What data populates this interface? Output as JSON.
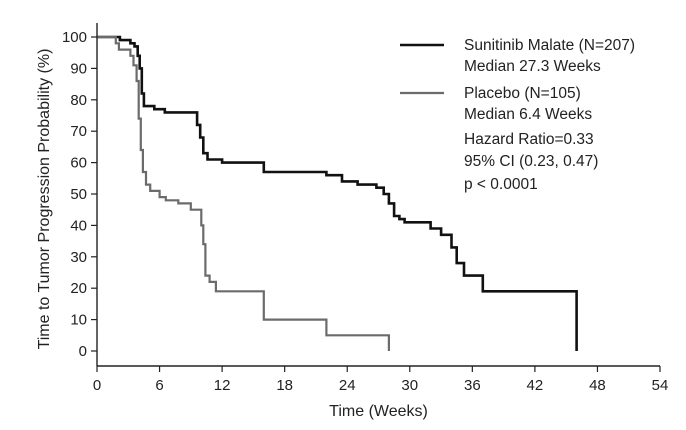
{
  "chart_data": {
    "type": "line",
    "title": "",
    "xlabel": "Time (Weeks)",
    "ylabel": "Time to Tumor Progression Probability (%)",
    "xlim": [
      0,
      54
    ],
    "ylim": [
      0,
      100
    ],
    "x_ticks": [
      0,
      6,
      12,
      18,
      24,
      30,
      36,
      42,
      48,
      54
    ],
    "y_ticks": [
      0,
      10,
      20,
      30,
      40,
      50,
      60,
      70,
      80,
      90,
      100
    ],
    "grid": false,
    "legend_position": "top-right",
    "series": [
      {
        "name": "Sunitinib Malate (N=207)",
        "median_label": "Median 27.3 Weeks",
        "color": "#111111",
        "step": true,
        "points": [
          [
            0,
            100
          ],
          [
            2.2,
            100
          ],
          [
            2.2,
            99
          ],
          [
            3.2,
            99
          ],
          [
            3.2,
            98
          ],
          [
            3.6,
            98
          ],
          [
            3.6,
            97
          ],
          [
            3.9,
            97
          ],
          [
            3.9,
            94
          ],
          [
            4.1,
            94
          ],
          [
            4.1,
            90
          ],
          [
            4.3,
            90
          ],
          [
            4.3,
            82
          ],
          [
            4.5,
            82
          ],
          [
            4.5,
            78
          ],
          [
            5.5,
            78
          ],
          [
            5.5,
            77
          ],
          [
            6.5,
            77
          ],
          [
            6.5,
            76
          ],
          [
            9.6,
            76
          ],
          [
            9.6,
            72
          ],
          [
            9.9,
            72
          ],
          [
            9.9,
            68
          ],
          [
            10.2,
            68
          ],
          [
            10.2,
            63
          ],
          [
            10.6,
            63
          ],
          [
            10.6,
            61
          ],
          [
            12,
            61
          ],
          [
            12,
            60
          ],
          [
            16,
            60
          ],
          [
            16,
            57
          ],
          [
            22,
            57
          ],
          [
            22,
            56
          ],
          [
            23.5,
            56
          ],
          [
            23.5,
            54
          ],
          [
            25,
            54
          ],
          [
            25,
            53
          ],
          [
            26.8,
            53
          ],
          [
            26.8,
            52
          ],
          [
            27.5,
            52
          ],
          [
            27.5,
            50
          ],
          [
            28,
            50
          ],
          [
            28,
            47
          ],
          [
            28.5,
            47
          ],
          [
            28.5,
            43
          ],
          [
            29,
            43
          ],
          [
            29,
            42
          ],
          [
            29.5,
            42
          ],
          [
            29.5,
            41
          ],
          [
            32,
            41
          ],
          [
            32,
            39
          ],
          [
            33,
            39
          ],
          [
            33,
            37
          ],
          [
            34,
            37
          ],
          [
            34,
            33
          ],
          [
            34.5,
            33
          ],
          [
            34.5,
            28
          ],
          [
            35.2,
            28
          ],
          [
            35.2,
            24
          ],
          [
            37,
            24
          ],
          [
            37,
            19
          ],
          [
            46,
            19
          ],
          [
            46,
            0
          ]
        ]
      },
      {
        "name": "Placebo (N=105)",
        "median_label": "Median 6.4 Weeks",
        "color": "#6b6b6b",
        "step": true,
        "points": [
          [
            0,
            100
          ],
          [
            1.8,
            100
          ],
          [
            1.8,
            98
          ],
          [
            2.1,
            98
          ],
          [
            2.1,
            96
          ],
          [
            3.2,
            96
          ],
          [
            3.2,
            94
          ],
          [
            3.5,
            94
          ],
          [
            3.5,
            91
          ],
          [
            3.8,
            91
          ],
          [
            3.8,
            86
          ],
          [
            4.0,
            86
          ],
          [
            4.0,
            74
          ],
          [
            4.2,
            74
          ],
          [
            4.2,
            64
          ],
          [
            4.4,
            64
          ],
          [
            4.4,
            57
          ],
          [
            4.7,
            57
          ],
          [
            4.7,
            53
          ],
          [
            5.1,
            53
          ],
          [
            5.1,
            51
          ],
          [
            6,
            51
          ],
          [
            6,
            49
          ],
          [
            6.6,
            49
          ],
          [
            6.6,
            48
          ],
          [
            7.8,
            48
          ],
          [
            7.8,
            47
          ],
          [
            9,
            47
          ],
          [
            9,
            45
          ],
          [
            10,
            45
          ],
          [
            10,
            40
          ],
          [
            10.2,
            40
          ],
          [
            10.2,
            34
          ],
          [
            10.4,
            34
          ],
          [
            10.4,
            24
          ],
          [
            10.8,
            24
          ],
          [
            10.8,
            22
          ],
          [
            11.4,
            22
          ],
          [
            11.4,
            19
          ],
          [
            16,
            19
          ],
          [
            16,
            10
          ],
          [
            22,
            10
          ],
          [
            22,
            5
          ],
          [
            28,
            5
          ],
          [
            28,
            0
          ]
        ]
      }
    ],
    "annotations": [
      "Hazard Ratio=0.33",
      "95% CI (0.23, 0.47)",
      "p < 0.0001"
    ]
  }
}
